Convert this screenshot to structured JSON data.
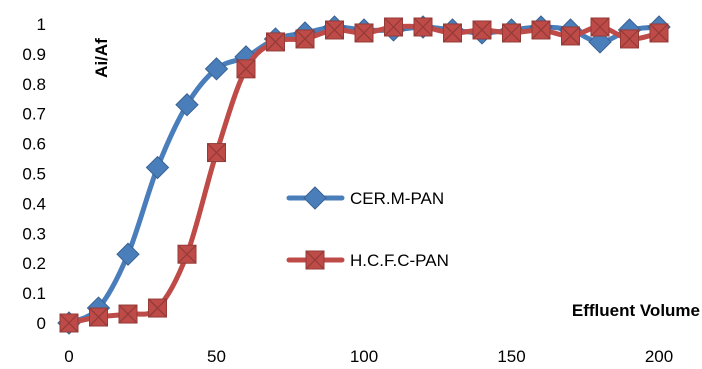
{
  "chart_data": {
    "type": "line",
    "title": "",
    "xlabel": "Effluent Volume",
    "ylabel": "Ai/Af",
    "xlim": [
      0,
      200
    ],
    "ylim": [
      0,
      1
    ],
    "xticks": [
      0,
      50,
      100,
      150,
      200
    ],
    "yticks": [
      0,
      0.1,
      0.2,
      0.3,
      0.4,
      0.5,
      0.6,
      0.7,
      0.8,
      0.9,
      1
    ],
    "ytick_labels": [
      "0",
      "0.1",
      "0.2",
      "0.3",
      "0.4",
      "0.5",
      "0.6",
      "0.7",
      "0.8",
      "0.9",
      "1"
    ],
    "grid": false,
    "legend_position": "center-right",
    "series": [
      {
        "name": "CER.M-PAN",
        "color": "#4a7ebb",
        "marker": "diamond",
        "x": [
          0,
          10,
          20,
          30,
          40,
          50,
          60,
          70,
          80,
          90,
          100,
          110,
          120,
          130,
          140,
          150,
          160,
          170,
          180,
          190,
          200
        ],
        "y": [
          0,
          0.05,
          0.23,
          0.52,
          0.73,
          0.85,
          0.89,
          0.95,
          0.97,
          0.99,
          0.98,
          0.98,
          0.99,
          0.98,
          0.97,
          0.98,
          0.99,
          0.98,
          0.94,
          0.98,
          0.99
        ]
      },
      {
        "name": "H.C.F.C-PAN",
        "color": "#be4b48",
        "marker": "square-x",
        "x": [
          0,
          10,
          20,
          30,
          40,
          50,
          60,
          70,
          80,
          90,
          100,
          110,
          120,
          130,
          140,
          150,
          160,
          170,
          180,
          190,
          200
        ],
        "y": [
          0,
          0.02,
          0.03,
          0.05,
          0.23,
          0.57,
          0.85,
          0.94,
          0.95,
          0.98,
          0.97,
          0.99,
          0.99,
          0.97,
          0.98,
          0.97,
          0.98,
          0.96,
          0.99,
          0.95,
          0.97
        ]
      }
    ]
  }
}
